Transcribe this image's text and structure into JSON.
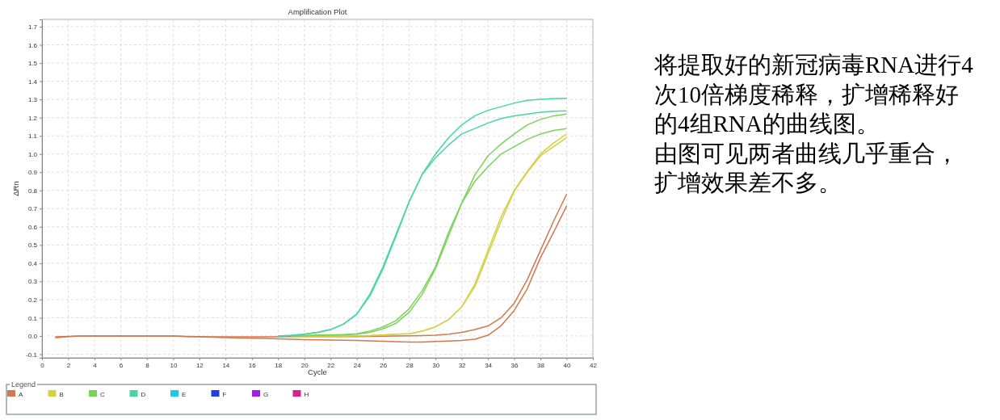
{
  "chart_data": {
    "type": "line",
    "title": "Amplification Plot",
    "xlabel": "Cycle",
    "ylabel": "ΔRn",
    "legend_title": "Legend",
    "legend": "bottom",
    "grid": true,
    "xlim": [
      0,
      42
    ],
    "xticks": [
      0,
      2,
      4,
      6,
      8,
      10,
      12,
      14,
      16,
      18,
      20,
      22,
      24,
      26,
      28,
      30,
      32,
      34,
      36,
      38,
      40,
      42
    ],
    "ylim": [
      -0.12,
      1.74
    ],
    "yticks": [
      -0.1,
      {
        "value": 0,
        "label": "0.0"
      },
      0.1,
      0.2,
      0.3,
      0.4,
      0.5,
      0.6,
      0.7,
      0.8,
      0.9,
      {
        "value": 1,
        "label": "1.0"
      },
      1.1,
      1.2,
      1.3,
      1.4,
      1.5,
      1.6,
      1.7
    ],
    "x": [
      1,
      2,
      3,
      4,
      5,
      6,
      7,
      8,
      9,
      10,
      11,
      12,
      13,
      14,
      15,
      16,
      17,
      18,
      19,
      20,
      21,
      22,
      23,
      24,
      25,
      26,
      27,
      28,
      29,
      30,
      31,
      32,
      33,
      34,
      35,
      36,
      37,
      38,
      39,
      40
    ],
    "series": [
      {
        "name": "A",
        "color": "#d2784e",
        "values": [
          -0.005,
          -0.002,
          0,
          0,
          0,
          0,
          0,
          0,
          0,
          0,
          -0.002,
          -0.004,
          -0.005,
          -0.005,
          -0.005,
          -0.005,
          -0.005,
          -0.005,
          -0.004,
          -0.004,
          -0.004,
          -0.004,
          -0.003,
          -0.003,
          -0.002,
          -0.001,
          0,
          0.001,
          0.002,
          0.004,
          0.01,
          0.02,
          0.035,
          0.055,
          0.1,
          0.18,
          0.31,
          0.47,
          0.63,
          0.78
        ]
      },
      {
        "color": "#d2784e",
        "values": [
          -0.01,
          -0.003,
          0,
          0,
          0,
          0,
          0,
          0,
          0,
          0,
          -0.003,
          -0.005,
          -0.007,
          -0.009,
          -0.011,
          -0.012,
          -0.014,
          -0.016,
          -0.018,
          -0.02,
          -0.021,
          -0.022,
          -0.023,
          -0.025,
          -0.027,
          -0.029,
          -0.031,
          -0.033,
          -0.033,
          -0.03,
          -0.028,
          -0.025,
          -0.018,
          0.004,
          0.056,
          0.14,
          0.26,
          0.43,
          0.57,
          0.715
        ]
      },
      {
        "name": "B",
        "color": "#d6d046",
        "values": [
          null,
          null,
          null,
          null,
          null,
          null,
          null,
          null,
          null,
          null,
          null,
          null,
          null,
          null,
          null,
          null,
          null,
          null,
          0,
          0,
          0,
          0,
          0,
          0.001,
          0.002,
          0.005,
          0.01,
          0.012,
          0.027,
          0.05,
          0.09,
          0.16,
          0.285,
          0.47,
          0.655,
          0.8,
          0.905,
          1.0,
          1.06,
          1.11
        ]
      },
      {
        "color": "#d6d046",
        "values": [
          null,
          null,
          null,
          null,
          null,
          null,
          null,
          null,
          null,
          null,
          null,
          null,
          null,
          null,
          null,
          null,
          null,
          null,
          0,
          0,
          0,
          0,
          0,
          0.001,
          0.002,
          0.005,
          0.01,
          0.012,
          0.027,
          0.05,
          0.09,
          0.16,
          0.27,
          0.45,
          0.63,
          0.795,
          0.9,
          0.99,
          1.04,
          1.09
        ]
      },
      {
        "name": "C",
        "color": "#78d456",
        "values": [
          null,
          null,
          null,
          null,
          null,
          null,
          null,
          null,
          null,
          null,
          null,
          null,
          null,
          null,
          null,
          null,
          null,
          null,
          0,
          0.002,
          0.004,
          0.006,
          0.008,
          0.012,
          0.027,
          0.05,
          0.085,
          0.15,
          0.25,
          0.38,
          0.57,
          0.73,
          0.885,
          0.99,
          1.055,
          1.11,
          1.16,
          1.19,
          1.21,
          1.22
        ]
      },
      {
        "color": "#78d456",
        "values": [
          null,
          null,
          null,
          null,
          null,
          null,
          null,
          null,
          null,
          null,
          null,
          null,
          null,
          null,
          null,
          null,
          null,
          null,
          0,
          0.002,
          0.003,
          0.005,
          0.007,
          0.01,
          0.02,
          0.04,
          0.07,
          0.13,
          0.23,
          0.37,
          0.55,
          0.73,
          0.85,
          0.93,
          1.0,
          1.04,
          1.08,
          1.11,
          1.13,
          1.14
        ]
      },
      {
        "name": "D",
        "color": "#46d6a6",
        "values": [
          null,
          null,
          null,
          null,
          null,
          null,
          null,
          null,
          null,
          null,
          null,
          null,
          null,
          null,
          null,
          null,
          null,
          0,
          0.003,
          0.01,
          0.02,
          0.035,
          0.066,
          0.12,
          0.23,
          0.38,
          0.56,
          0.74,
          0.89,
          1.0,
          1.09,
          1.16,
          1.21,
          1.24,
          1.26,
          1.28,
          1.295,
          1.3,
          1.305,
          1.306
        ]
      },
      {
        "color": "#46d6a6",
        "values": [
          null,
          null,
          null,
          null,
          null,
          null,
          null,
          null,
          null,
          null,
          null,
          null,
          null,
          null,
          null,
          null,
          null,
          0,
          0.003,
          0.01,
          0.02,
          0.035,
          0.066,
          0.12,
          0.22,
          0.37,
          0.55,
          0.74,
          0.89,
          0.98,
          1.05,
          1.11,
          1.14,
          1.17,
          1.195,
          1.21,
          1.22,
          1.23,
          1.235,
          1.237
        ]
      },
      {
        "name": "E",
        "color": "#20c8e8",
        "values": [
          null,
          null,
          null,
          null,
          null,
          null,
          null,
          null,
          null,
          null,
          null,
          null,
          null,
          null,
          null,
          null,
          null,
          null,
          null,
          null,
          null,
          null,
          null,
          null,
          null,
          null,
          null,
          null,
          null,
          null,
          null,
          null,
          null,
          null,
          null,
          null,
          null,
          null,
          null,
          null
        ]
      },
      {
        "name": "F",
        "color": "#2040e0",
        "values": [
          null,
          null,
          null,
          null,
          null,
          null,
          null,
          null,
          null,
          null,
          null,
          null,
          null,
          null,
          null,
          null,
          null,
          null,
          null,
          null,
          null,
          null,
          null,
          null,
          null,
          null,
          null,
          null,
          null,
          null,
          null,
          null,
          null,
          null,
          null,
          null,
          null,
          null,
          null,
          null
        ]
      },
      {
        "name": "G",
        "color": "#a020e8",
        "values": [
          null,
          null,
          null,
          null,
          null,
          null,
          null,
          null,
          null,
          null,
          null,
          null,
          null,
          null,
          null,
          null,
          null,
          null,
          null,
          null,
          null,
          null,
          null,
          null,
          null,
          null,
          null,
          null,
          null,
          null,
          null,
          null,
          null,
          null,
          null,
          null,
          null,
          null,
          null,
          null
        ]
      },
      {
        "name": "H",
        "color": "#e0208a",
        "values": [
          null,
          null,
          null,
          null,
          null,
          null,
          null,
          null,
          null,
          null,
          null,
          null,
          null,
          null,
          null,
          null,
          null,
          null,
          null,
          null,
          null,
          null,
          null,
          null,
          null,
          null,
          null,
          null,
          null,
          null,
          null,
          null,
          null,
          null,
          null,
          null,
          null,
          null,
          null,
          null
        ]
      }
    ],
    "annotations": [
      "将提取好的新冠病毒RNA进行4次10倍梯度稀释，扩增稀释好的4组RNA的曲线图。",
      "由图可见两者曲线几乎重合，扩增效果差不多。"
    ]
  }
}
